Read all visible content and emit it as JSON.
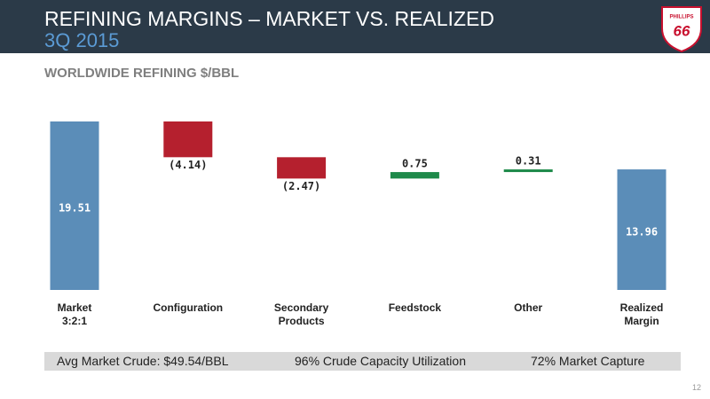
{
  "header": {
    "title": "REFINING MARGINS – MARKET VS. REALIZED",
    "subtitle": "3Q 2015"
  },
  "logo": {
    "brand": "PHILLIPS",
    "number": "66"
  },
  "chart_data": {
    "type": "waterfall",
    "title": "WORLDWIDE REFINING $/BBL",
    "categories": [
      "Market\n3:2:1",
      "Configuration",
      "Secondary\nProducts",
      "Feedstock",
      "Other",
      "Realized\nMargin"
    ],
    "values": [
      19.51,
      -4.14,
      -2.47,
      0.75,
      0.31,
      13.96
    ],
    "value_labels": [
      "19.51",
      "(4.14)",
      "(2.47)",
      "0.75",
      "0.31",
      "13.96"
    ],
    "measures": [
      "absolute",
      "relative",
      "relative",
      "relative",
      "relative",
      "total"
    ],
    "colors": [
      "#5b8db8",
      "#b5202e",
      "#b5202e",
      "#1e8a4a",
      "#1e8a4a",
      "#5b8db8"
    ]
  },
  "footer": [
    "Avg Market Crude: $49.54/BBL",
    "96% Crude Capacity Utilization",
    "72% Market Capture"
  ],
  "page_number": "12"
}
